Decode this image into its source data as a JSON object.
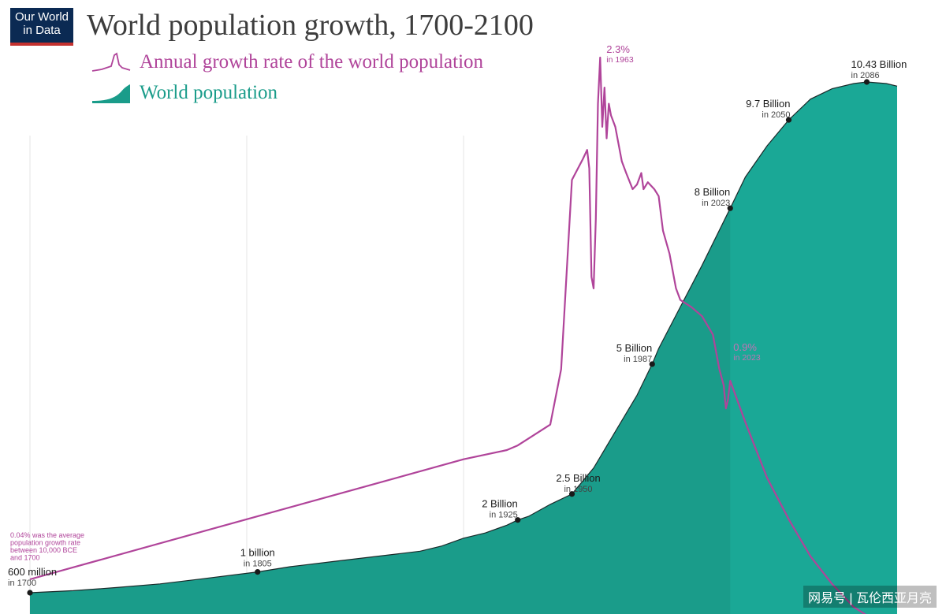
{
  "header": {
    "logo_line1": "Our World",
    "logo_line2": "in Data",
    "title": "World population growth, 1700-2100"
  },
  "legend": {
    "rate_label": "Annual growth rate of the world population",
    "population_label": "World population",
    "rate_icon": "peak-line-icon",
    "population_icon": "area-ramp-icon"
  },
  "colors": {
    "population_fill": "#1a9c8a",
    "population_fill_projection": "#1aa896",
    "population_line": "#1a2a2a",
    "rate_line": "#b0449a",
    "rate_line_on_fill": "#c073b4",
    "grid": "#e6e6e6"
  },
  "chart_data": {
    "type": "area",
    "title": "World population growth, 1700-2100",
    "xlim": [
      1700,
      2100
    ],
    "grid": true,
    "legend_position": "top-left",
    "series": [
      {
        "name": "World population",
        "unit": "billion",
        "x": [
          1700,
          1720,
          1740,
          1760,
          1780,
          1805,
          1820,
          1840,
          1860,
          1870,
          1880,
          1890,
          1900,
          1910,
          1920,
          1925,
          1930,
          1940,
          1950,
          1960,
          1970,
          1980,
          1987,
          1990,
          2000,
          2010,
          2023,
          2030,
          2040,
          2050,
          2060,
          2070,
          2080,
          2086,
          2095,
          2100
        ],
        "values": [
          0.6,
          0.64,
          0.7,
          0.77,
          0.87,
          1.0,
          1.1,
          1.2,
          1.3,
          1.35,
          1.4,
          1.5,
          1.65,
          1.75,
          1.9,
          2.0,
          2.07,
          2.3,
          2.5,
          3.0,
          3.7,
          4.4,
          5.0,
          5.3,
          6.1,
          6.9,
          8.0,
          8.6,
          9.2,
          9.7,
          10.1,
          10.3,
          10.4,
          10.43,
          10.4,
          10.35
        ]
      },
      {
        "name": "Annual growth rate of the world population",
        "unit": "%",
        "x": [
          1700,
          1800,
          1850,
          1900,
          1920,
          1925,
          1930,
          1940,
          1945,
          1950,
          1955,
          1957,
          1958,
          1959,
          1960,
          1961,
          1962,
          1963,
          1964,
          1965,
          1966,
          1967,
          1968,
          1970,
          1973,
          1975,
          1978,
          1980,
          1982,
          1983,
          1985,
          1988,
          1990,
          1992,
          1995,
          1998,
          2000,
          2005,
          2010,
          2015,
          2018,
          2020,
          2021,
          2022,
          2023,
          2030,
          2040,
          2050,
          2060,
          2070,
          2080,
          2090,
          2100
        ],
        "values": [
          0.04,
          0.3,
          0.43,
          0.56,
          0.6,
          0.62,
          0.65,
          0.71,
          0.95,
          1.77,
          1.86,
          1.9,
          1.82,
          1.35,
          1.3,
          1.6,
          2.1,
          2.3,
          2.0,
          2.17,
          1.95,
          2.1,
          2.05,
          2.0,
          1.85,
          1.8,
          1.73,
          1.75,
          1.8,
          1.73,
          1.76,
          1.73,
          1.7,
          1.55,
          1.45,
          1.3,
          1.25,
          1.22,
          1.18,
          1.1,
          0.95,
          0.88,
          0.78,
          0.82,
          0.9,
          0.72,
          0.48,
          0.3,
          0.14,
          0.02,
          -0.08,
          -0.14,
          -0.16
        ]
      }
    ],
    "annotations": [
      {
        "series": "World population",
        "x": 1700,
        "label": "600 million",
        "sub": "in 1700"
      },
      {
        "series": "World population",
        "x": 1805,
        "label": "1 billion",
        "sub": "in 1805"
      },
      {
        "series": "World population",
        "x": 1925,
        "label": "2 Billion",
        "sub": "in 1925"
      },
      {
        "series": "World population",
        "x": 1950,
        "label": "2.5 Billion",
        "sub": "in 1950"
      },
      {
        "series": "World population",
        "x": 1987,
        "label": "5 Billion",
        "sub": "in 1987"
      },
      {
        "series": "World population",
        "x": 2023,
        "label": "8 Billion",
        "sub": "in 2023"
      },
      {
        "series": "World population",
        "x": 2050,
        "label": "9.7 Billion",
        "sub": "in 2050"
      },
      {
        "series": "World population",
        "x": 2086,
        "label": "10.43 Billion",
        "sub": "in 2086"
      },
      {
        "series": "Annual growth rate of the world population",
        "x": 1963,
        "label": "2.3%",
        "sub": "in 1963"
      },
      {
        "series": "Annual growth rate of the world population",
        "x": 2023,
        "label": "0.9%",
        "sub": "in 2023"
      }
    ],
    "note": [
      "0.04% was the average",
      "population growth rate",
      "between 10,000 BCE",
      "and 1700"
    ]
  },
  "watermark": "网易号 | 瓦伦西亚月亮"
}
